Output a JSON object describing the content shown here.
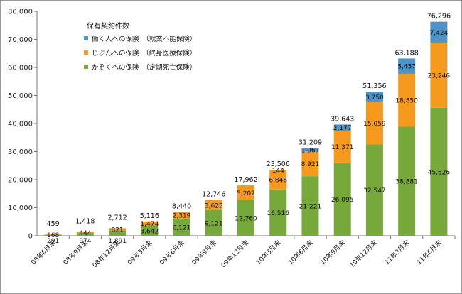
{
  "chart_data": {
    "type": "bar",
    "stacked": true,
    "title": "",
    "legend_title": "保有契約件数",
    "legend_position": "top-left",
    "categories": [
      "08年6月末",
      "08年9月末",
      "08年12月末",
      "09年3月末",
      "09年6月末",
      "09年9月末",
      "09年12月末",
      "10年3月末",
      "10年6月末",
      "10年9月末",
      "10年12月末",
      "11年3月末",
      "11年6月末"
    ],
    "series": [
      {
        "name": "かぞくへの保険　（定期死亡保険）",
        "color": "#77a83a",
        "values": [
          291,
          974,
          1891,
          3642,
          6121,
          9121,
          12760,
          16516,
          21221,
          26095,
          32547,
          38881,
          45626
        ]
      },
      {
        "name": "じぶんへの保険　（終身医療保険）",
        "color": "#f59a1d",
        "values": [
          168,
          444,
          821,
          1474,
          2319,
          3625,
          5202,
          6846,
          8921,
          11371,
          15059,
          18850,
          23246
        ]
      },
      {
        "name": "働く人への保険　（就業不能保険）",
        "color": "#4f94c9",
        "values": [
          0,
          0,
          0,
          0,
          0,
          0,
          0,
          144,
          1067,
          2177,
          3750,
          5457,
          7424
        ]
      }
    ],
    "totals": [
      459,
      1418,
      2712,
      5116,
      8440,
      12746,
      17962,
      23506,
      31209,
      39643,
      51356,
      63188,
      76296
    ],
    "segment_labels": [
      [
        "291",
        "168",
        ""
      ],
      [
        "974",
        "444",
        ""
      ],
      [
        "1,891",
        "821",
        ""
      ],
      [
        "3,642",
        "1,474",
        ""
      ],
      [
        "6,121",
        "2,319",
        ""
      ],
      [
        "9,121",
        "3,625",
        ""
      ],
      [
        "12,760",
        "5,202",
        ""
      ],
      [
        "16,516",
        "6,846",
        "144"
      ],
      [
        "21,221",
        "8,921",
        "1,067"
      ],
      [
        "26,095",
        "11,371",
        "2,177"
      ],
      [
        "32,547",
        "15,059",
        "3,750"
      ],
      [
        "38,881",
        "18,850",
        "5,457"
      ],
      [
        "45,626",
        "23,246",
        "7,424"
      ]
    ],
    "total_labels": [
      "459",
      "1,418",
      "2,712",
      "5,116",
      "8,440",
      "12,746",
      "17,962",
      "23,506",
      "31,209",
      "39,643",
      "51,356",
      "63,188",
      "76,296"
    ],
    "ylim": [
      0,
      80000
    ],
    "yticks": [
      "0",
      "10,000",
      "20,000",
      "30,000",
      "40,000",
      "50,000",
      "60,000",
      "70,000",
      "80,000"
    ],
    "grid": false,
    "xlabel": "",
    "ylabel": ""
  }
}
